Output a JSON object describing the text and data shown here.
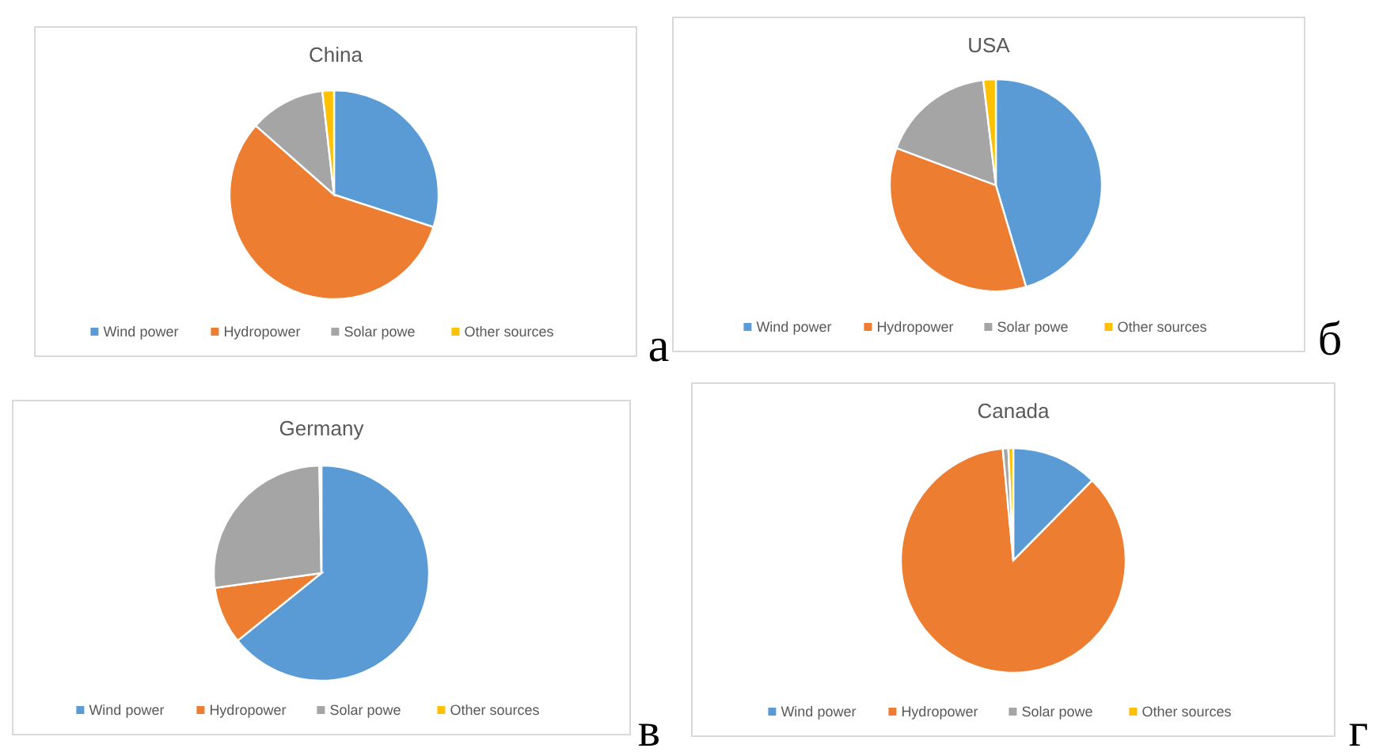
{
  "chart_data": [
    {
      "type": "pie",
      "title": "China",
      "categories": [
        "Wind power",
        "Hydropower",
        "Solar powe",
        "Other sources"
      ],
      "values": [
        30,
        56.5,
        11.7,
        1.8
      ],
      "colors": [
        "#5b9bd5",
        "#ed7d31",
        "#a5a5a5",
        "#ffc000"
      ],
      "legend": "bottom",
      "annotations": [
        "а"
      ]
    },
    {
      "type": "pie",
      "title": "USA",
      "categories": [
        "Wind power",
        "Hydropower",
        "Solar powe",
        "Other sources"
      ],
      "values": [
        45.4,
        35.3,
        17.4,
        1.9
      ],
      "colors": [
        "#5b9bd5",
        "#ed7d31",
        "#a5a5a5",
        "#ffc000"
      ],
      "legend": "bottom",
      "annotations": [
        "б"
      ]
    },
    {
      "type": "pie",
      "title": "Germany",
      "categories": [
        "Wind power",
        "Hydropower",
        "Solar powe",
        "Other sources"
      ],
      "values": [
        64.2,
        8.6,
        26.9,
        0.3
      ],
      "colors": [
        "#5b9bd5",
        "#ed7d31",
        "#a5a5a5",
        "#ffc000"
      ],
      "legend": "bottom",
      "annotations": [
        "в"
      ]
    },
    {
      "type": "pie",
      "title": "Canada",
      "categories": [
        "Wind power",
        "Hydropower",
        "Solar powe",
        "Other sources"
      ],
      "values": [
        12.4,
        86.1,
        0.8,
        0.7
      ],
      "colors": [
        "#5b9bd5",
        "#ed7d31",
        "#a5a5a5",
        "#ffc000"
      ],
      "legend": "bottom",
      "annotations": [
        "г"
      ]
    }
  ]
}
